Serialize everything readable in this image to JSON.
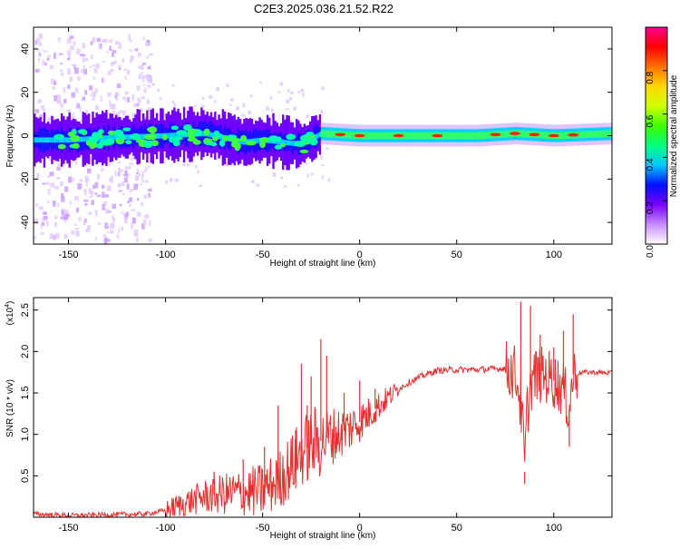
{
  "title": "C2E3.2025.036.21.52.R22",
  "chart_data": [
    {
      "type": "heatmap",
      "id": "spectrogram",
      "xlabel": "Height of straight line (km)",
      "ylabel": "Frequency (Hz)",
      "xlim": [
        -168,
        130
      ],
      "ylim": [
        -50,
        50
      ],
      "x_ticks": [
        -150,
        -100,
        -50,
        0,
        50,
        100
      ],
      "x_tick_labels": [
        "-150",
        "-100",
        "-50",
        "0",
        "50",
        "100"
      ],
      "y_ticks": [
        -40,
        -20,
        0,
        20,
        40
      ],
      "y_tick_labels": [
        "-40",
        "-20",
        "0",
        "20",
        "40"
      ],
      "ridge": {
        "x": [
          -168,
          -150,
          -130,
          -100,
          -80,
          -60,
          -50,
          -30,
          -20,
          0,
          30,
          60,
          80,
          100,
          130
        ],
        "y": [
          -2,
          -2,
          -1,
          0,
          1,
          -3,
          -2,
          -4,
          1,
          0,
          0,
          0,
          1,
          0,
          1
        ]
      },
      "colorbar": {
        "label": "Normalized spectral amplitude",
        "range": [
          0,
          1
        ],
        "ticks": [
          0.0,
          0.2,
          0.4,
          0.6,
          0.8
        ],
        "tick_labels": [
          "0.0",
          "0.2",
          "0.4",
          "0.6",
          "0.8"
        ],
        "colors": [
          "#ffffff",
          "#c78cff",
          "#7a00ff",
          "#0010ff",
          "#00c8ff",
          "#00ff80",
          "#40ff00",
          "#d0ff00",
          "#ffd800",
          "#ff7000",
          "#ff0000",
          "#ff0090"
        ]
      }
    },
    {
      "type": "line",
      "id": "snr",
      "xlabel": "Height of straight line (km)",
      "ylabel": "SNR (10 * v/v)",
      "y_multiplier": "(x10",
      "y_multiplier_exp": "4",
      "y_multiplier_close": ")",
      "xlim": [
        -168,
        130
      ],
      "ylim": [
        0,
        2.65
      ],
      "x_ticks": [
        -150,
        -100,
        -50,
        0,
        50,
        100
      ],
      "x_tick_labels": [
        "-150",
        "-100",
        "-50",
        "0",
        "50",
        "100"
      ],
      "y_ticks": [
        0.5,
        1.0,
        1.5,
        2.0,
        2.5
      ],
      "y_tick_labels": [
        "0.5",
        "1.0",
        "1.5",
        "2.0",
        "2.5"
      ],
      "line_color": "#e83030",
      "series": [
        {
          "name": "SNR",
          "x": [
            -168,
            -150,
            -130,
            -110,
            -100,
            -90,
            -80,
            -70,
            -60,
            -50,
            -45,
            -40,
            -35,
            -30,
            -25,
            -20,
            -15,
            -10,
            -5,
            0,
            5,
            10,
            15,
            20,
            25,
            30,
            35,
            40,
            50,
            60,
            70,
            75,
            80,
            82,
            84,
            85,
            86,
            88,
            90,
            95,
            100,
            105,
            108,
            110,
            115,
            120,
            130
          ],
          "y": [
            0.04,
            0.02,
            0.03,
            0.04,
            0.08,
            0.17,
            0.25,
            0.28,
            0.3,
            0.32,
            0.4,
            0.5,
            0.62,
            0.78,
            0.88,
            0.92,
            0.98,
            1.02,
            1.08,
            1.15,
            1.25,
            1.35,
            1.45,
            1.55,
            1.62,
            1.68,
            1.73,
            1.77,
            1.78,
            1.78,
            1.79,
            1.8,
            1.75,
            1.55,
            1.1,
            0.55,
            1.2,
            1.6,
            1.7,
            1.72,
            1.65,
            1.55,
            1.3,
            1.72,
            1.75,
            1.75,
            1.74
          ]
        }
      ],
      "spikes": {
        "x": [
          -75,
          -60,
          -55,
          -49,
          -42,
          -33,
          -30,
          -27,
          -25,
          -20,
          -17,
          -8,
          0,
          8,
          83,
          85,
          88,
          93,
          100,
          105,
          108,
          110
        ],
        "y": [
          0.55,
          0.7,
          0.45,
          0.85,
          1.35,
          1.05,
          1.85,
          1.35,
          1.7,
          2.15,
          1.95,
          1.5,
          1.65,
          1.55,
          2.6,
          0.4,
          2.55,
          2.2,
          2.05,
          2.25,
          0.85,
          2.45
        ]
      }
    }
  ]
}
